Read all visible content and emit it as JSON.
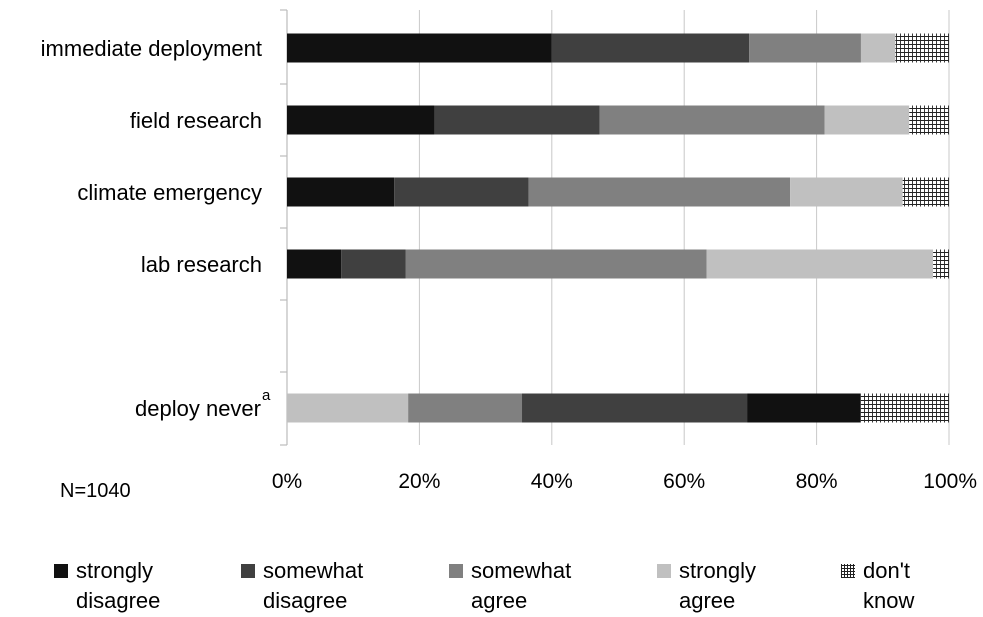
{
  "chart_data": {
    "type": "bar",
    "orientation": "horizontal",
    "stacked": true,
    "normalized": true,
    "categories": [
      "immediate deployment",
      "field research",
      "climate emergency",
      "lab research",
      "deploy never"
    ],
    "category_superscripts": [
      "",
      "",
      "",
      "",
      "a"
    ],
    "series": [
      {
        "name": "strongly disagree",
        "color": "#111111",
        "values": [
          40,
          22.3,
          16.2,
          8.2,
          0
        ]
      },
      {
        "name": "somewhat disagree",
        "color": "#404040",
        "values": [
          29.8,
          24.9,
          20.3,
          9.7,
          0
        ]
      },
      {
        "name": "somewhat agree",
        "color": "#808080",
        "values": [
          16.9,
          34,
          39.5,
          45.5,
          0
        ]
      },
      {
        "name": "strongly agree",
        "color": "#c0c0c0",
        "values": [
          5.2,
          12.8,
          17,
          34.2,
          0
        ]
      },
      {
        "name": "don't know",
        "color": "pattern",
        "values": [
          8.1,
          6,
          7,
          2.4,
          0
        ]
      }
    ],
    "deploy_never_segments": [
      {
        "series": "strongly agree",
        "value": 18.3
      },
      {
        "series": "somewhat agree",
        "value": 17.2
      },
      {
        "series": "somewhat disagree",
        "value": 34
      },
      {
        "series": "strongly disagree",
        "value": 17.1
      },
      {
        "series": "don't know",
        "value": 13.4
      }
    ],
    "x_ticks": [
      "0%",
      "20%",
      "40%",
      "60%",
      "80%",
      "100%"
    ],
    "xlim": [
      0,
      100
    ],
    "grid": "vertical",
    "legend_position": "bottom",
    "annotation": "N=1040"
  },
  "legend": [
    {
      "line1": "strongly",
      "line2": "disagree"
    },
    {
      "line1": "somewhat",
      "line2": "disagree"
    },
    {
      "line1": "somewhat",
      "line2": "agree"
    },
    {
      "line1": "strongly",
      "line2": "agree"
    },
    {
      "line1": "don't",
      "line2": "know"
    }
  ],
  "colors": {
    "strongly_disagree": "#111111",
    "somewhat_disagree": "#404040",
    "somewhat_agree": "#808080",
    "strongly_agree": "#c0c0c0",
    "dont_know_pattern": "crosshatch"
  }
}
